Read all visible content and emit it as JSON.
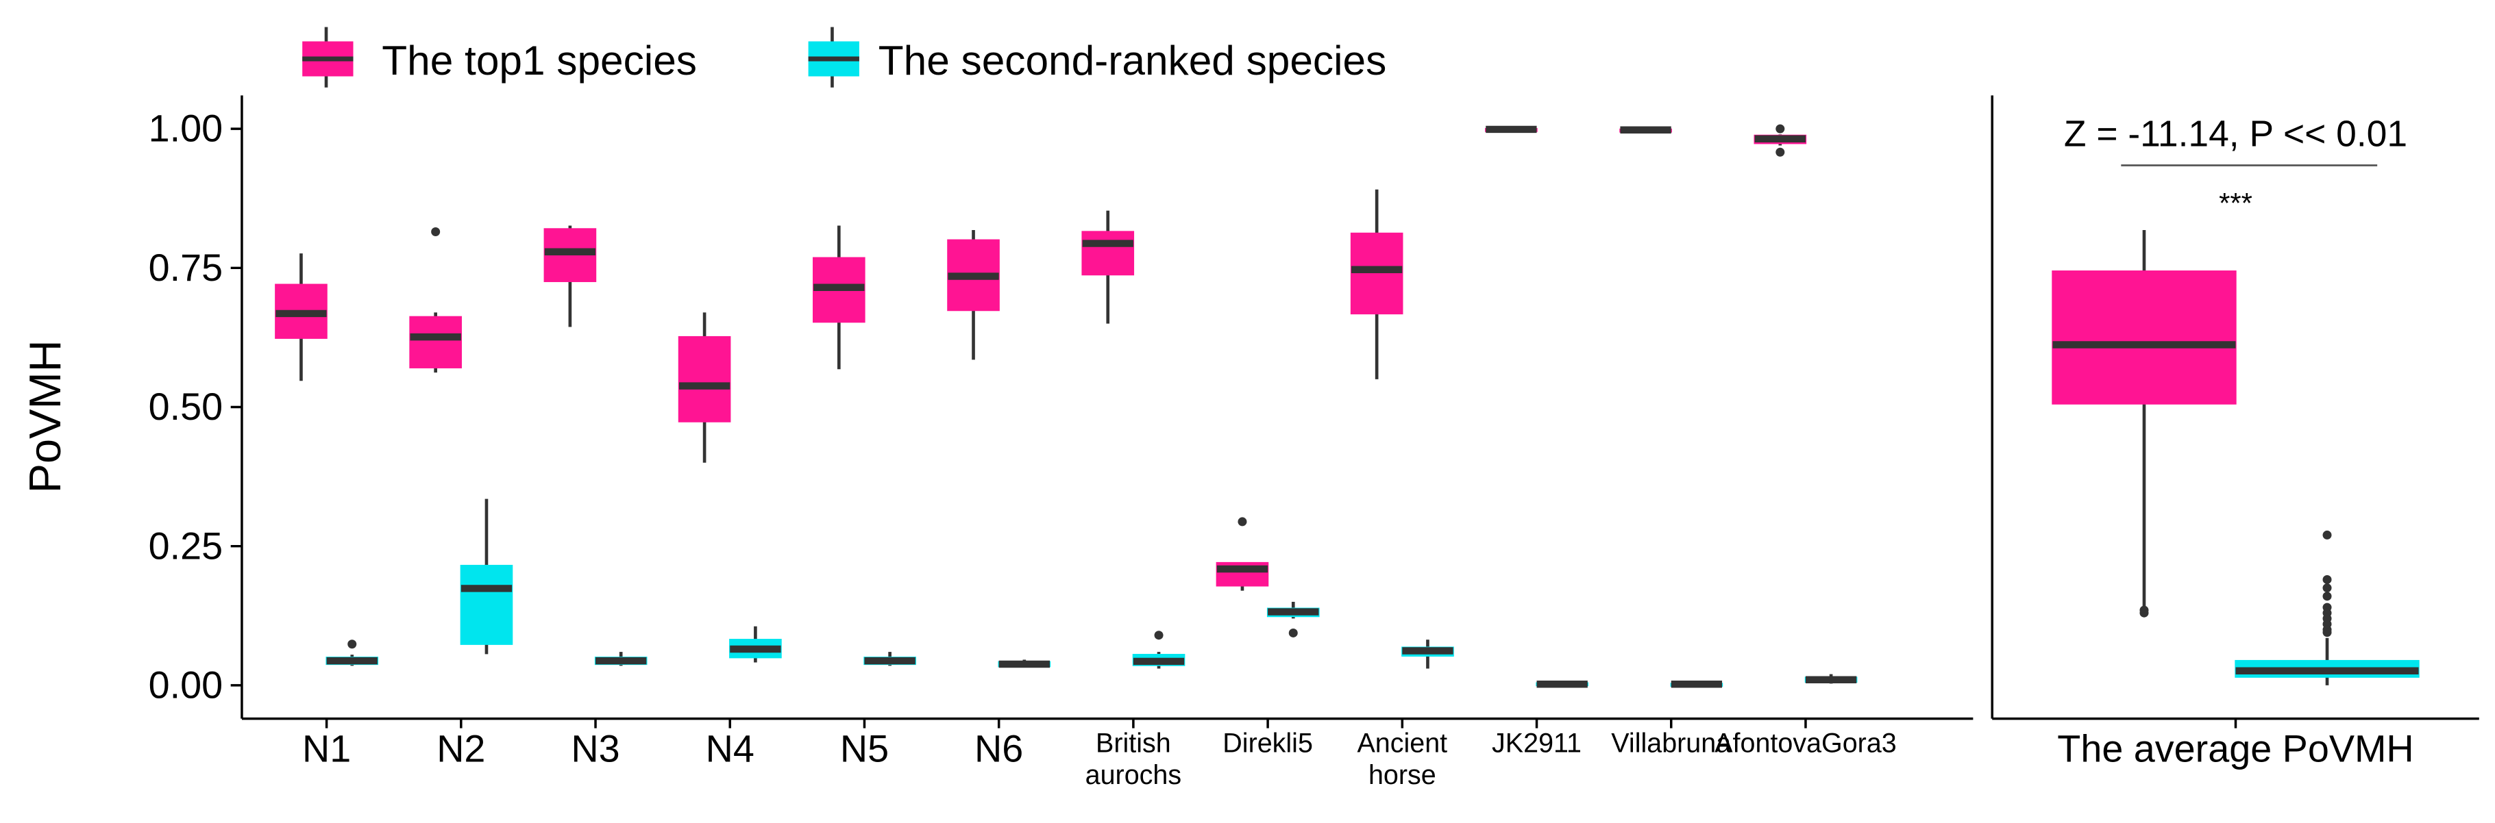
{
  "chart_data": [
    {
      "type": "box",
      "y_label": "PoVMH",
      "ylim": [
        -0.06,
        1.06
      ],
      "yticks": [
        {
          "value": 0,
          "label": "0.00"
        },
        {
          "value": 0.25,
          "label": "0.25"
        },
        {
          "value": 0.5,
          "label": "0.50"
        },
        {
          "value": 0.75,
          "label": "0.75"
        },
        {
          "value": 1,
          "label": "1.00"
        }
      ],
      "legend": "top",
      "categories": [
        "N1",
        "N2",
        "N3",
        "N4",
        "N5",
        "N6",
        "British aurochs",
        "Direkli5",
        "Ancient horse",
        "JK2911",
        "Villabruna",
        "AfontovaGora3"
      ],
      "series": [
        {
          "name": "The top1 species",
          "color": "#ff1493",
          "values": [
            {
              "min": 0.547,
              "q1": 0.624,
              "median": 0.668,
              "q3": 0.72,
              "max": 0.776,
              "outliers": []
            },
            {
              "min": 0.562,
              "q1": 0.571,
              "median": 0.626,
              "q3": 0.662,
              "max": 0.67,
              "outliers": [
                0.815
              ]
            },
            {
              "min": 0.644,
              "q1": 0.726,
              "median": 0.779,
              "q3": 0.82,
              "max": 0.826,
              "outliers": []
            },
            {
              "min": 0.4,
              "q1": 0.474,
              "median": 0.538,
              "q3": 0.626,
              "max": 0.67,
              "outliers": []
            },
            {
              "min": 0.568,
              "q1": 0.653,
              "median": 0.715,
              "q3": 0.768,
              "max": 0.826,
              "outliers": []
            },
            {
              "min": 0.585,
              "q1": 0.674,
              "median": 0.735,
              "q3": 0.8,
              "max": 0.818,
              "outliers": []
            },
            {
              "min": 0.65,
              "q1": 0.738,
              "median": 0.794,
              "q3": 0.815,
              "max": 0.853,
              "outliers": []
            },
            {
              "min": 0.17,
              "q1": 0.179,
              "median": 0.209,
              "q3": 0.22,
              "max": 0.22,
              "outliers": [
                0.294
              ]
            },
            {
              "min": 0.55,
              "q1": 0.668,
              "median": 0.747,
              "q3": 0.812,
              "max": 0.891,
              "outliers": []
            },
            {
              "min": 0.995,
              "q1": 0.997,
              "median": 0.999,
              "q3": 1.0,
              "max": 1.0,
              "outliers": []
            },
            {
              "min": 0.993,
              "q1": 0.996,
              "median": 0.998,
              "q3": 0.999,
              "max": 1.0,
              "outliers": []
            },
            {
              "min": 0.97,
              "q1": 0.974,
              "median": 0.982,
              "q3": 0.988,
              "max": 0.99,
              "outliers": [
                1.0,
                0.958
              ]
            }
          ]
        },
        {
          "name": "The second-ranked species",
          "color": "#00e5ee",
          "values": [
            {
              "min": 0.035,
              "q1": 0.038,
              "median": 0.044,
              "q3": 0.05,
              "max": 0.055,
              "outliers": [
                0.074
              ]
            },
            {
              "min": 0.056,
              "q1": 0.074,
              "median": 0.174,
              "q3": 0.215,
              "max": 0.335,
              "outliers": []
            },
            {
              "min": 0.035,
              "q1": 0.038,
              "median": 0.044,
              "q3": 0.05,
              "max": 0.06,
              "outliers": []
            },
            {
              "min": 0.041,
              "q1": 0.05,
              "median": 0.065,
              "q3": 0.082,
              "max": 0.106,
              "outliers": []
            },
            {
              "min": 0.035,
              "q1": 0.038,
              "median": 0.044,
              "q3": 0.05,
              "max": 0.06,
              "outliers": []
            },
            {
              "min": 0.032,
              "q1": 0.034,
              "median": 0.038,
              "q3": 0.042,
              "max": 0.046,
              "outliers": []
            },
            {
              "min": 0.03,
              "q1": 0.036,
              "median": 0.043,
              "q3": 0.055,
              "max": 0.06,
              "outliers": [
                0.09
              ]
            },
            {
              "min": 0.12,
              "q1": 0.124,
              "median": 0.132,
              "q3": 0.138,
              "max": 0.15,
              "outliers": [
                0.094
              ]
            },
            {
              "min": 0.03,
              "q1": 0.053,
              "median": 0.062,
              "q3": 0.068,
              "max": 0.082,
              "outliers": []
            },
            {
              "min": 0,
              "q1": 0.001,
              "median": 0.002,
              "q3": 0.004,
              "max": 0.005,
              "outliers": []
            },
            {
              "min": 0,
              "q1": 0.001,
              "median": 0.002,
              "q3": 0.003,
              "max": 0.005,
              "outliers": []
            },
            {
              "min": 0.003,
              "q1": 0.006,
              "median": 0.01,
              "q3": 0.014,
              "max": 0.02,
              "outliers": []
            }
          ]
        }
      ]
    },
    {
      "type": "box",
      "ylim": [
        -0.06,
        1.06
      ],
      "categories": [
        "The average PoVMH"
      ],
      "annotation": "Z = -11.14, P << 0.01",
      "significance": "***",
      "series": [
        {
          "color": "#ff1493",
          "values": [
            {
              "min": 0.138,
              "q1": 0.506,
              "median": 0.612,
              "q3": 0.744,
              "max": 0.818,
              "outliers": [
                0.135,
                0.13
              ]
            }
          ]
        },
        {
          "color": "#00e5ee",
          "values": [
            {
              "min": 0,
              "q1": 0.015,
              "median": 0.026,
              "q3": 0.044,
              "max": 0.085,
              "outliers": [
                0.27,
                0.19,
                0.175,
                0.16,
                0.14,
                0.13,
                0.12,
                0.11,
                0.1,
                0.095
              ]
            }
          ]
        }
      ]
    }
  ]
}
